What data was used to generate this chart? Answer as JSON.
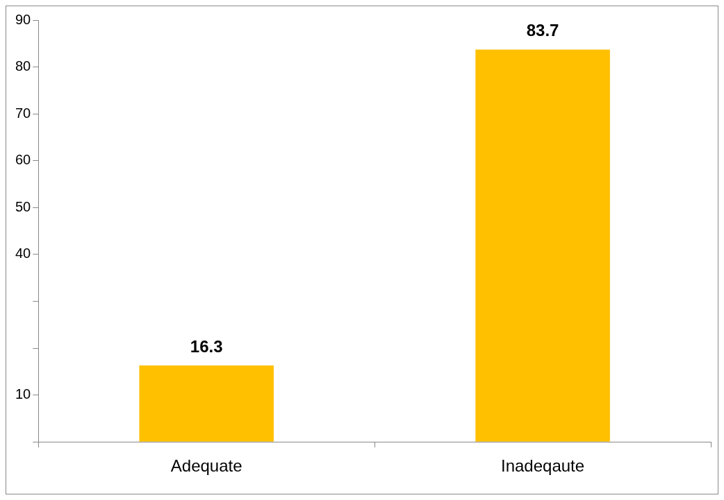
{
  "chart_data": {
    "type": "bar",
    "categories": [
      "Adequate",
      "Inadeqaute"
    ],
    "values": [
      16.3,
      83.7
    ],
    "color": "#ffc000",
    "ylim": [
      0,
      90
    ],
    "yticks": [
      {
        "value": 0,
        "label": null
      },
      {
        "value": 10,
        "label": "10"
      },
      {
        "value": 20,
        "label": null
      },
      {
        "value": 30,
        "label": null
      },
      {
        "value": 40,
        "label": "40"
      },
      {
        "value": 50,
        "label": "50"
      },
      {
        "value": 60,
        "label": "60"
      },
      {
        "value": 70,
        "label": "70"
      },
      {
        "value": 80,
        "label": "80"
      },
      {
        "value": 90,
        "label": "90"
      }
    ],
    "grid": false,
    "legend": false,
    "data_labels": true
  }
}
